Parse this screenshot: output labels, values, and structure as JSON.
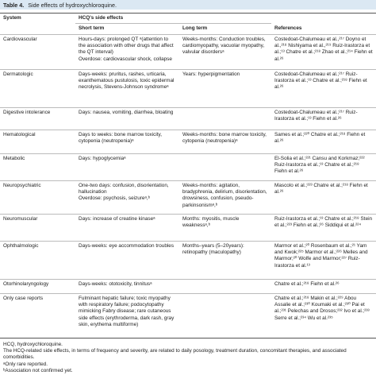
{
  "title": {
    "label": "Table 4.",
    "text": "Side effects of hydroxychloroquine."
  },
  "table": {
    "header": {
      "system": "System",
      "group": "HCQ's side effects",
      "short": "Short term",
      "long": "Long term",
      "references": "References"
    },
    "rows": [
      [
        "Cardiovascular",
        "Hours-days: prolonged QT ᵃ(attention to the association with other drugs that affect the QT interval)\nOverdose: cardiovascular shock, collapse",
        "Weeks-months: Conduction troubles, cardiomyopathy, vacuolar myopathy, valvular disordersᵃ",
        "Costedoat-Chalumeau et al.,²¹⁷ Doyno et al.,²¹⁸ Nishiyama et al.,²¹⁹ Ruiz-Irastorza et al.;¹³ Chatre et al.;²¹⁸ Zhao et al.;²¹⁴ Fiehn et al.²⁶"
      ],
      [
        "Dermatologic",
        "Days-weeks: pruritus, rashes, urticaria, exanthematous pustulosis, toxic epidermal necrolysis, Stevens-Johnson syndromeᵃ",
        "Years: hyperpigmentation",
        "Costedoat-Chalumeau et al.;²¹⁷ Ruiz-Irastorza et al.;¹³ Chatre et al.;²¹⁸ Fiehn et al.²⁶"
      ],
      [
        "Digestive intolerance",
        "Days: nausea, vomiting, diarrhea, bloating",
        null,
        "Costedoat-Chalumeau et al.;²¹⁷ Ruiz-Irastorza et al.;¹³ Fiehn et al.²⁶"
      ],
      [
        "Hematological",
        "Days to weeks: bone marrow toxicity, cytopenia (neutropenia)ᵃ",
        "Weeks-months: bone marrow toxicity, cytopenia (neutropenia)ᵃ",
        "Sames et al.;²²⁰ Chatre et al.;²¹⁸ Fiehn et al.²⁶"
      ],
      [
        "Metabolic",
        "Days: hypoglycemiaᵃ",
        null,
        "El-Solia et al.;²²¹ Cansu and Korkmaz;²²² Ruiz-Irastorza et al.;¹³ Chatre et al.;²¹⁸ Fiehn et al.²⁶"
      ],
      [
        "Neuropsychiatric",
        "One-two days: confusion, disorientation, hallucination\nOverdose: psychosis, seizureᵃ,ᵇ",
        "Weeks-months: agitation, bradyphrenia, delirium, disorientation, drowsiness, confusion, pseudo-parkinsonismᵃ,ᵇ",
        "Mascolo et al.;²²³ Chatre et al.;²¹⁸ Fiehn et al.²⁶"
      ],
      [
        "Neuromuscular",
        "Days: increase of creatine kinaseᵃ",
        "Months: myositis, muscle weaknessᵃ,ᵇ",
        "Ruiz-Irastorza et al.;¹³ Chatre et al.;²¹⁸ Stein et al.;²²³ Fiehn et al.;²⁶ Siddiqui et al.²²⁴"
      ],
      [
        "Ophthalmologic",
        "Days-weeks: eye accommodation troubles",
        "Months–years (5–20years): retinopathy (maculopathy)",
        "Marmor et al.;²⁰ Rosenbaum et al.;²¹ Yam and Kwok;²²⁵ Marmor et al.;²²⁶ Melles and Marmor;²⁰ Wolfe and Marmor;²²⁷ Ruiz-Irastorza et al.¹³"
      ],
      [
        "Otorhinolaryngology",
        "Days-weeks: ototoxicity, tinnitusᵃ",
        null,
        "Chatre et al.;²¹⁸ Fiehn et al.²⁶"
      ],
      [
        "Only case reports",
        "Fulminant hepatic failure; toxic myopathy with respiratory failure; podocytopathy mimicking Fabry disease; rare cutaneous side effects (erythroderma, dark rash, gray skin, erythema multiforme)",
        null,
        "Chatre et al.;²¹⁸ Makin et al.;²²⁹ Abou Assalie et al.;²³⁰ Koumaki et al.;²³⁰ Pai et al.;²³¹ Pelechas and Drosos;²³² Ivo et al.;²³³ Serre et al.;²³⁴ Wu et al.²³⁵"
      ]
    ]
  },
  "footnotes": [
    "HCQ, hydroxychloroquine.",
    "The HCQ-related side effects, in terms of frequency and severity, are related to daily posology, treatment duration, concomitant therapies, and associated comorbidities.",
    "ᵃOnly rare reported.",
    "ᵇAssociation not confirmed yet."
  ]
}
